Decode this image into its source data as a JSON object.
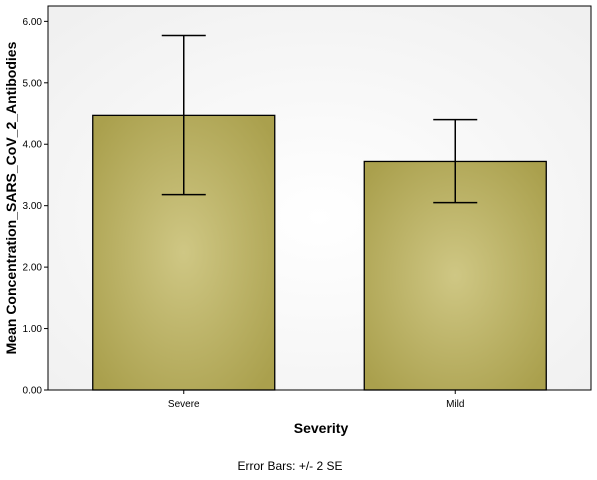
{
  "chart_data": {
    "type": "bar",
    "xlabel": "Severity",
    "ylabel": "Mean Concentration_SARS_CoV_2_Antibodies",
    "categories": [
      "Severe",
      "Mild"
    ],
    "values": [
      4.47,
      3.72
    ],
    "error_bars": [
      {
        "low": 3.18,
        "high": 5.77
      },
      {
        "low": 3.05,
        "high": 4.4
      }
    ],
    "ylim": [
      0,
      6.25
    ],
    "y_ticks": [
      "0.00",
      "1.00",
      "2.00",
      "3.00",
      "4.00",
      "5.00",
      "6.00"
    ],
    "footnote": "Error Bars: +/- 2 SE",
    "grid": false,
    "colors": {
      "bar_fill_center": "#cfc784",
      "bar_fill_edge": "#aaa04d",
      "plot_background": "#f0f0f0",
      "plot_background_center": "#ffffff"
    }
  }
}
